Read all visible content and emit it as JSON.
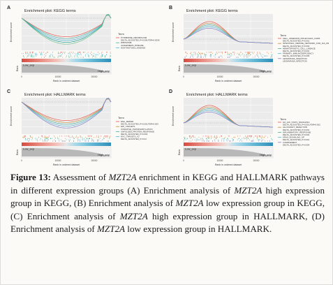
{
  "panels": [
    {
      "letter": "A",
      "title": "Enrichment plot: KEGG terms",
      "legend_title": "Term",
      "legend": [
        "PYRIMIDINE_METABOLISM",
        "DELTA_ADJUSTED_P=0.006,FDR=0.0036",
        "RIBOSOME",
        "ALZHEIMERS_DISEASE",
        "HUNTINGTONS_DISEASE"
      ],
      "colors": [
        "#e8554e",
        "#4bb0a2",
        "#5ab6d6",
        "#1aa18c",
        "#6fbf8c"
      ],
      "shape": "rise"
    },
    {
      "letter": "B",
      "title": "Enrichment plot: KEGG terms",
      "legend_title": "Term",
      "legend": [
        "CELL_ADHESION_MOLECULES_CAMS",
        "DELTA_ADJUSTED_P=0.001",
        "INTESTINAL_IMMUNE_NETWORK_FOR_IGA_PRODUCTION",
        "DELTA_ADJUSTED_P=0.004",
        "HEMATOPOIETIC_CELL_LINEAGE",
        "DELTA_ADJUSTED_P=0.001",
        "PRIMARY_IMMUNODEFICIENCY",
        "DELTA_ADJUSTED_P=0.005",
        "LEISHMANIA_INFECTION",
        "LEISHMANIA_INFECTION"
      ],
      "colors": [
        "#e8554e",
        "#c98a3a",
        "#4bb0a2",
        "#5ab6d6",
        "#8a7fc4"
      ],
      "shape": "peak"
    },
    {
      "letter": "C",
      "title": "Enrichment plot: HALLMARK terms",
      "legend_title": "Term",
      "legend": [
        "DNA_REPAIR",
        "DELTA_ADJUSTED_P=0.002,FDR=0.003",
        "E2F_TARGETS",
        "OXIDATIVE_PHOSPHORYLATION",
        "UNFOLDED_PROTEIN_RESPONSE",
        "DELTA_ADJUSTED_P=0.003",
        "MYC_TARGETS_V2",
        "DELTA_ADJUSTED_P=0.04"
      ],
      "colors": [
        "#e8554e",
        "#c98a3a",
        "#4bb0a2",
        "#5ab6d6",
        "#8a7fc4"
      ],
      "shape": "rise"
    },
    {
      "letter": "D",
      "title": "Enrichment plot: HALLMARK terms",
      "legend_title": "Term",
      "legend": [
        "IL6_JAK_STAT3_SIGNALING",
        "DELTA_ADJUSTED_P=0.001,FDR=0.002",
        "ALLOGRAFT_REJECTION",
        "DELTA_ADJUSTED_P=0.001",
        "INFLAMMATORY_RESPONSE",
        "DELTA_ADJUSTED_P=0.004",
        "KRAS_SIGNALING_UP",
        "DELTA_ADJUSTED_P=0.001",
        "COMPLEMENT",
        "DELTA_ADJUSTED_P=0.004"
      ],
      "colors": [
        "#e8554e",
        "#c98a3a",
        "#4bb0a2",
        "#5ab6d6",
        "#8a7fc4"
      ],
      "shape": "peak"
    }
  ],
  "axis": {
    "ylabel": "Enrichment score",
    "rank_ylabel": "Rank",
    "xlabel": "Rank in ordered dataset",
    "xticks": [
      "0",
      "10000",
      "20000"
    ],
    "low_label": "Low_exp",
    "high_label": "High_exp"
  },
  "caption": {
    "label": "Figure 13:",
    "parts": [
      " Assessment of ",
      "MZT2A",
      " enrichment in KEGG and HALLMARK pathways in different expression groups (A) Enrichment analysis of ",
      "MZT2A",
      " high expression group in KEGG, (B) Enrichment analysis of ",
      "MZT2A",
      " low expression group in KEGG, (C) Enrichment analysis of ",
      "MZT2A",
      " high expression group in HALLMARK, (D) Enrichment analysis of ",
      "MZT2A",
      " low expression group in HALLMARK."
    ]
  }
}
